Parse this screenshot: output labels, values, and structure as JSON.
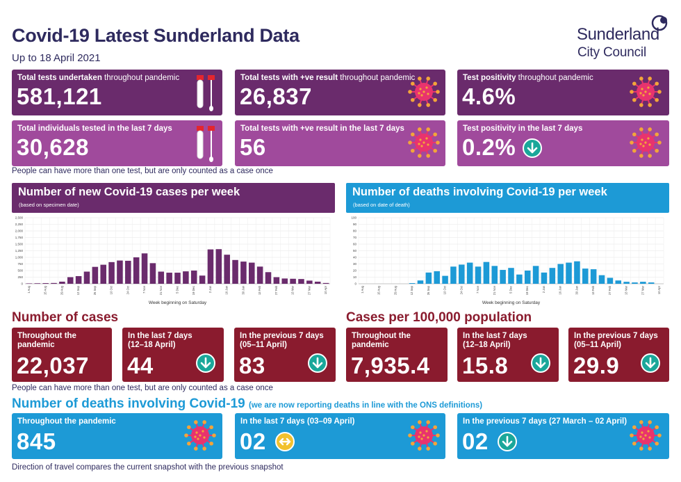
{
  "header": {
    "title": "Covid-19 Latest Sunderland Data",
    "subtitle": "Up to 18 April 2021",
    "logo_line1": "Sunderland",
    "logo_line2": "City Council"
  },
  "tests": {
    "total_tests": {
      "label_bold": "Total tests undertaken",
      "label_rest": " throughout pandemic",
      "value": "581,121"
    },
    "positive_tests": {
      "label_bold": "Total tests with +ve result",
      "label_rest": " throughout pandemic",
      "value": "26,837"
    },
    "positivity": {
      "label_bold": "Test positivity",
      "label_rest": " throughout pandemic",
      "value": "4.6%"
    },
    "individuals_7d": {
      "label": "Total individuals tested in the last 7 days",
      "value": "30,628"
    },
    "positive_7d": {
      "label": "Total tests with +ve result in the  last 7 days",
      "value": "56"
    },
    "positivity_7d": {
      "label": "Test positivity in the last 7 days",
      "value": "0.2%",
      "trend": "down"
    },
    "note": "People can have more than one test, but are only counted as a case once"
  },
  "charts": {
    "cases_head": {
      "title": "Number of new Covid-19 cases per week",
      "sub": "(based on specimen date)"
    },
    "deaths_head": {
      "title": "Number of deaths involving Covid-19 per week",
      "sub": "(based on date of death)"
    },
    "xlabel": "Week beginning on Saturday"
  },
  "chart_data": [
    {
      "type": "bar",
      "title": "Number of new Covid-19 cases per week",
      "subtitle": "(based on specimen date)",
      "xlabel": "Week beginning on Saturday",
      "ylabel": "",
      "ylim": [
        0,
        2500
      ],
      "yticks": [
        0,
        250,
        500,
        750,
        1000,
        1250,
        1500,
        1750,
        2000,
        2250,
        2500
      ],
      "ytick_labels": [
        "0",
        "250",
        "500",
        "750",
        "1,000",
        "1,250",
        "1,500",
        "1,750",
        "2,000",
        "2,250",
        "2,500"
      ],
      "categories": [
        "1 Aug",
        "8 Aug",
        "15 Aug",
        "22 Aug",
        "29 Aug",
        "5 Sep",
        "12 Sep",
        "19 Sep",
        "26 Sep",
        "3 Oct",
        "10 Oct",
        "17 Oct",
        "24 Oct",
        "31 Oct",
        "7 Nov",
        "14 Nov",
        "21 Nov",
        "28 Nov",
        "5 Dec",
        "12 Dec",
        "19 Dec",
        "26 Dec",
        "2 Jan",
        "9 Jan",
        "16 Jan",
        "23 Jan",
        "30 Jan",
        "6 Feb",
        "13 Feb",
        "20 Feb",
        "27 Feb",
        "6 Mar",
        "13 Mar",
        "20 Mar",
        "27 Mar",
        "3 Apr",
        "10 Apr"
      ],
      "tick_labels": [
        "1 Aug",
        "",
        "15 Aug",
        "",
        "29 Aug",
        "",
        "12 Sep",
        "",
        "26 Sep",
        "",
        "10 Oct",
        "",
        "24 Oct",
        "",
        "7 Nov",
        "",
        "21 Nov",
        "",
        "5 Dec",
        "",
        "19 Dec",
        "",
        "2 Jan",
        "",
        "16 Jan",
        "",
        "30 Jan",
        "",
        "13 Feb",
        "",
        "27 Feb",
        "",
        "13 Mar",
        "",
        "27 Mar",
        "",
        "10 Apr"
      ],
      "values": [
        15,
        20,
        25,
        30,
        80,
        250,
        290,
        460,
        640,
        720,
        820,
        880,
        870,
        1000,
        1150,
        780,
        460,
        420,
        420,
        470,
        500,
        310,
        1300,
        1310,
        1100,
        900,
        840,
        800,
        650,
        440,
        250,
        200,
        190,
        180,
        120,
        80,
        30
      ],
      "color": "#6a2b6c"
    },
    {
      "type": "bar",
      "title": "Number of deaths involving Covid-19 per week",
      "subtitle": "(based on date of death)",
      "xlabel": "Week beginning on Saturday",
      "ylabel": "",
      "ylim": [
        0,
        100
      ],
      "yticks": [
        0,
        10,
        20,
        30,
        40,
        50,
        60,
        70,
        80,
        90,
        100
      ],
      "ytick_labels": [
        "0",
        "10",
        "20",
        "30",
        "40",
        "50",
        "60",
        "70",
        "80",
        "90",
        "100"
      ],
      "categories": [
        "1 Aug",
        "8 Aug",
        "15 Aug",
        "22 Aug",
        "29 Aug",
        "5 Sep",
        "12 Sep",
        "19 Sep",
        "26 Sep",
        "3 Oct",
        "10 Oct",
        "17 Oct",
        "24 Oct",
        "31 Oct",
        "7 Nov",
        "14 Nov",
        "21 Nov",
        "28 Nov",
        "5 Dec",
        "12 Dec",
        "19 Dec",
        "26 Dec",
        "2 Jan",
        "9 Jan",
        "16 Jan",
        "23 Jan",
        "30 Jan",
        "6 Feb",
        "13 Feb",
        "20 Feb",
        "27 Feb",
        "6 Mar",
        "13 Mar",
        "20 Mar",
        "27 Mar",
        "3 Apr",
        "10 Apr"
      ],
      "tick_labels": [
        "1 Aug",
        "",
        "15 Aug",
        "",
        "29 Aug",
        "",
        "12 Sep",
        "",
        "26 Sep",
        "",
        "10 Oct",
        "",
        "24 Oct",
        "",
        "7 Nov",
        "",
        "21 Nov",
        "",
        "5 Dec",
        "",
        "19 Dec",
        "",
        "2 Jan",
        "",
        "16 Jan",
        "",
        "30 Jan",
        "",
        "13 Feb",
        "",
        "27 Feb",
        "",
        "13 Mar",
        "",
        "27 Mar",
        "",
        "10 Apr"
      ],
      "values": [
        0,
        0,
        0,
        0,
        0,
        0,
        1,
        5,
        17,
        19,
        12,
        26,
        29,
        32,
        26,
        33,
        27,
        21,
        24,
        14,
        20,
        27,
        17,
        24,
        30,
        32,
        34,
        23,
        22,
        13,
        9,
        5,
        3,
        2,
        3,
        2,
        0
      ],
      "color": "#1d9ad6"
    }
  ],
  "cases": {
    "heading": "Number of cases",
    "throughout": {
      "label": "Throughout the pandemic",
      "value": "22,037"
    },
    "last7": {
      "label": "In the last 7 days (12–18 April)",
      "value": "44",
      "trend": "down"
    },
    "prev7": {
      "label": "In the previous 7 days (05–11 April)",
      "value": "83",
      "trend": "down"
    },
    "note": "People can have more than one test, but are only counted as a case once"
  },
  "rates": {
    "heading": "Cases per 100,000 population",
    "throughout": {
      "label": "Throughout the pandemic",
      "value": "7,935.4"
    },
    "last7": {
      "label": "In the last 7 days (12–18 April)",
      "value": "15.8",
      "trend": "down"
    },
    "prev7": {
      "label": "In the previous 7 days (05–11 April)",
      "value": "29.9",
      "trend": "down"
    }
  },
  "deaths": {
    "heading": "Number of deaths involving Covid-19",
    "heading_note": "(we are now reporting deaths in line with the ONS definitions)",
    "throughout": {
      "label": "Throughout the pandemic",
      "value": "845"
    },
    "last7": {
      "label": "In the last 7 days (03–09 April)",
      "value": "02",
      "trend": "same"
    },
    "prev7": {
      "label": "In the previous 7 days  (27 March – 02 April)",
      "value": "02",
      "trend": "down"
    },
    "footer": "Direction of travel compares the current snapshot with the previous snapshot"
  },
  "colors": {
    "navy": "#2e2a5e",
    "purple_dark": "#6a2b6c",
    "purple_light": "#a04a9c",
    "maroon": "#8a1b2e",
    "blue": "#1d9ad6",
    "teal_arrow": "#1aa79a",
    "yellow_arrow": "#f2c12e",
    "virus": "#e8336e"
  },
  "icons": [
    "test-tube-icon",
    "virus-icon",
    "arrow-down-icon",
    "arrow-left-right-icon"
  ]
}
